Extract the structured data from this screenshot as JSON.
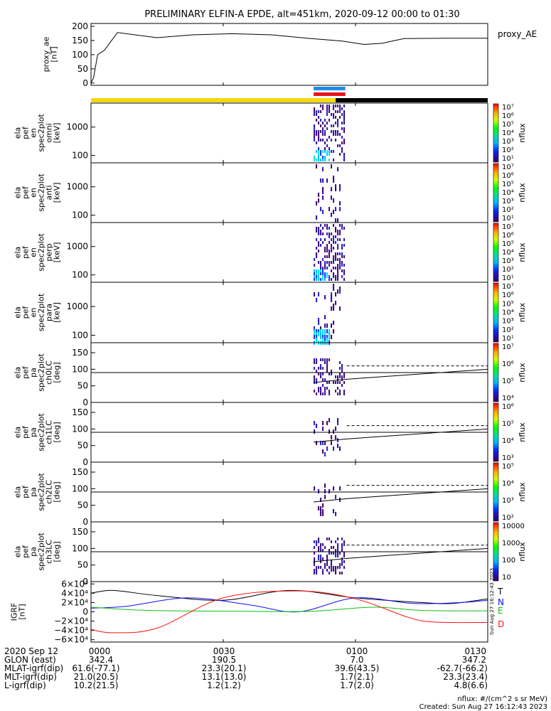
{
  "title": "PRELIMINARY ELFIN-A EPDE, alt=451km, 2020-09-12 00:00 to 01:30",
  "time_axis": {
    "start_minute": 0,
    "end_minute": 90,
    "ticks": [
      "0000",
      "0030",
      "0100",
      "0130"
    ],
    "tick_minutes": [
      0,
      30,
      60,
      90
    ]
  },
  "colors": {
    "yellow_bar": "#f5d90f",
    "black_bar": "#000000",
    "blue_bar": "#1a8ee8",
    "red_bar": "#e8141c",
    "T": "#000000",
    "N": "#1010ff",
    "E": "#10c010",
    "D": "#ff1010"
  },
  "bars": {
    "yellow_black_switch_minute": 55.5,
    "blue": [
      50.5,
      57.7
    ],
    "red": [
      50.5,
      57.7
    ]
  },
  "chart_data": [
    {
      "id": "proxy_ae",
      "type": "line",
      "ylabel_lines": [
        "proxy_ae",
        "[nT]"
      ],
      "legend": "proxy_AE",
      "yticks": [
        "200",
        "150",
        "100",
        "50",
        "0"
      ],
      "ytick_values": [
        200,
        150,
        100,
        50,
        0
      ],
      "ylim": [
        -8,
        210
      ],
      "x": [
        0,
        0.6,
        1.5,
        3,
        6,
        15,
        23,
        32,
        41,
        49,
        57,
        62,
        66,
        71,
        81,
        90
      ],
      "y": [
        0,
        20,
        100,
        115,
        178,
        160,
        170,
        174,
        170,
        158,
        148,
        136,
        140,
        157,
        158,
        158
      ]
    },
    {
      "id": "omni",
      "type": "heatmap",
      "ylabel_lines": [
        "ela",
        "pef",
        "en",
        "spec2plot",
        "omni",
        "[keV]"
      ],
      "yticks": [
        "1000",
        "100"
      ],
      "ytick_values": [
        1000,
        100
      ],
      "ylog": true,
      "ylim": [
        55,
        7000
      ],
      "colorbar": {
        "label": "nflux",
        "ticks": [
          "10⁷",
          "10⁶",
          "10⁵",
          "10⁴",
          "10³",
          "10²",
          "10¹"
        ]
      }
    },
    {
      "id": "anti",
      "type": "heatmap",
      "ylabel_lines": [
        "ela",
        "pef",
        "en",
        "spec2plot",
        "anti",
        "[keV]"
      ],
      "yticks": [
        "1000",
        "100"
      ],
      "ytick_values": [
        1000,
        100
      ],
      "ylog": true,
      "ylim": [
        55,
        7000
      ],
      "colorbar": {
        "label": "nflux",
        "ticks": [
          "10⁷",
          "10⁶",
          "10⁵",
          "10⁴",
          "10³",
          "10²",
          "10¹"
        ]
      }
    },
    {
      "id": "perp",
      "type": "heatmap",
      "ylabel_lines": [
        "ela",
        "pef",
        "en",
        "spec2plot",
        "perp",
        "[keV]"
      ],
      "yticks": [
        "1000",
        "100"
      ],
      "ytick_values": [
        1000,
        100
      ],
      "ylog": true,
      "ylim": [
        55,
        7000
      ],
      "colorbar": {
        "label": "nflux",
        "ticks": [
          "10⁷",
          "10⁶",
          "10⁵",
          "10⁴",
          "10³",
          "10²",
          "10¹"
        ]
      }
    },
    {
      "id": "para",
      "type": "heatmap",
      "ylabel_lines": [
        "ela",
        "pef",
        "en",
        "spec2plot",
        "para",
        "[keV]"
      ],
      "yticks": [
        "1000",
        "100"
      ],
      "ytick_values": [
        1000,
        100
      ],
      "ylog": true,
      "ylim": [
        55,
        7000
      ],
      "colorbar": {
        "label": "nflux",
        "ticks": [
          "10⁷",
          "10⁶",
          "10⁵",
          "10⁴",
          "10³",
          "10²",
          "10¹"
        ]
      }
    },
    {
      "id": "ch0LC",
      "type": "heatmap",
      "ylabel_lines": [
        "ela",
        "pef",
        "pa",
        "spec2plot",
        "ch0LC",
        "[deg]"
      ],
      "yticks": [
        "150",
        "100",
        "50",
        "0"
      ],
      "ytick_values": [
        150,
        100,
        50,
        0
      ],
      "ylim": [
        0,
        180
      ],
      "colorbar": {
        "label": "nflux",
        "ticks": [
          "10⁷",
          "10⁶",
          "10⁵",
          "10⁴"
        ]
      }
    },
    {
      "id": "ch1LC",
      "type": "heatmap",
      "ylabel_lines": [
        "ela",
        "pef",
        "pa",
        "spec2plot",
        "ch1LC",
        "[deg]"
      ],
      "yticks": [
        "150",
        "100",
        "50",
        "0"
      ],
      "ytick_values": [
        150,
        100,
        50,
        0
      ],
      "ylim": [
        0,
        180
      ],
      "colorbar": {
        "label": "nflux",
        "ticks": [
          "10⁶",
          "10⁵",
          "10⁴",
          "10³"
        ]
      }
    },
    {
      "id": "ch2LC",
      "type": "heatmap",
      "ylabel_lines": [
        "ela",
        "pef",
        "pa",
        "spec2plot",
        "ch2LC",
        "[deg]"
      ],
      "yticks": [
        "150",
        "100",
        "50",
        "0"
      ],
      "ytick_values": [
        150,
        100,
        50,
        0
      ],
      "ylim": [
        0,
        180
      ],
      "colorbar": {
        "label": "nflux",
        "ticks": [
          "10⁵",
          "10⁴",
          "10³",
          "10²"
        ]
      }
    },
    {
      "id": "ch3LC",
      "type": "heatmap",
      "ylabel_lines": [
        "ela",
        "pef",
        "pa",
        "spec2plot",
        "ch3LC",
        "[deg]"
      ],
      "yticks": [
        "150",
        "100",
        "50",
        "0"
      ],
      "ytick_values": [
        150,
        100,
        50,
        0
      ],
      "ylim": [
        0,
        180
      ],
      "colorbar": {
        "label": "nflux",
        "ticks": [
          "10000",
          "1000",
          "100",
          "10"
        ]
      }
    },
    {
      "id": "igrf",
      "type": "line",
      "ylabel_lines": [
        "IGRF",
        "[nT]"
      ],
      "yticks": [
        "6×10⁴",
        "4×10⁴",
        "2×10⁴",
        "0",
        "−2×10⁴",
        "−4×10⁴",
        "−6×10⁴"
      ],
      "ytick_values": [
        60000,
        40000,
        20000,
        0,
        -20000,
        -40000,
        -60000
      ],
      "ylim": [
        -65000,
        65000
      ],
      "series": [
        {
          "name": "T",
          "x": [
            0,
            5,
            15,
            30,
            45,
            60,
            75,
            82,
            90
          ],
          "y": [
            40000,
            46000,
            35000,
            25000,
            46000,
            30000,
            20000,
            18000,
            28000
          ]
        },
        {
          "name": "N",
          "x": [
            0,
            8,
            22,
            36,
            47,
            60,
            73,
            84,
            90
          ],
          "y": [
            8000,
            12000,
            30000,
            15000,
            0,
            30000,
            18000,
            20000,
            25000
          ]
        },
        {
          "name": "E",
          "x": [
            0,
            10,
            20,
            35,
            50,
            64,
            75,
            90
          ],
          "y": [
            10000,
            4000,
            2000,
            1000,
            1000,
            10000,
            3000,
            2000
          ]
        },
        {
          "name": "D",
          "x": [
            0,
            5,
            15,
            30,
            47,
            60,
            72,
            78,
            90
          ],
          "y": [
            -38000,
            -45000,
            -35000,
            30000,
            45000,
            28000,
            -12000,
            -22000,
            -23000
          ]
        }
      ]
    }
  ],
  "footer": {
    "rows": [
      {
        "label": "2020 Sep 12",
        "values": [
          "0000",
          "0030",
          "0100",
          "0130"
        ]
      },
      {
        "label": "GLON (east)",
        "values": [
          "342.4",
          "190.5",
          "7.0",
          "347.2"
        ]
      },
      {
        "label": "MLAT-igrf(dip)",
        "values": [
          "61.6(-77.1)",
          "23.3(20.1)",
          "39.6(43.5)",
          "-62.7(-66.2)"
        ]
      },
      {
        "label": "MLT-igrf(dip)",
        "values": [
          "21.0(20.5)",
          "13.1(13.0)",
          "1.7(2.1)",
          "23.3(23.4)"
        ]
      },
      {
        "label": "L-igrf(dip)",
        "values": [
          "10.2(21.5)",
          "1.2(1.2)",
          "1.7(2.0)",
          "4.8(6.6)"
        ]
      }
    ],
    "units_note": "nflux: #/(cm^2 s sr MeV)",
    "created": "Created: Sun Aug 27 16:12:43 2023",
    "side_stamp": "Sun Aug 27 16:12:43 2023"
  }
}
